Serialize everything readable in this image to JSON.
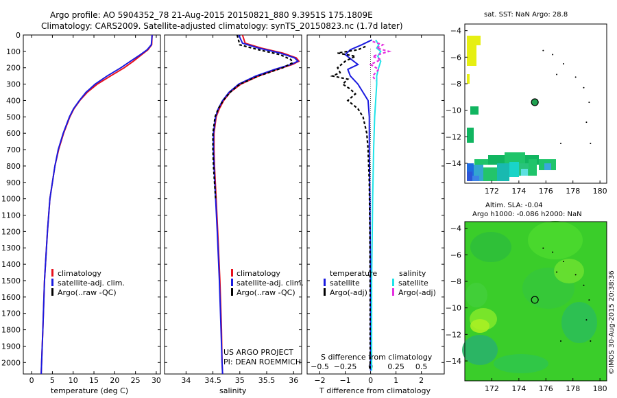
{
  "header": {
    "line1": "Argo profile: AO 5904352_78 21-Aug-2015 20150821_880 9.3951S 175.1809E",
    "line2": "Climatology: CARS2009. Satellite-adjusted climatology: synTS_20150823.nc (1.7d later)"
  },
  "colors": {
    "climatology": "#e8101c",
    "satellite": "#1a1adf",
    "argo": "#000000",
    "sal_satellite": "#1fe3e8",
    "sal_argo": "#e52fe0"
  },
  "credits": {
    "project": "US ARGO PROJECT",
    "pi": "PI: DEAN ROEMMICH",
    "stamp": "©IMOS 30-Aug-2015 20:38:36"
  },
  "chart_data": [
    {
      "type": "line",
      "xlabel": "temperature (deg C)",
      "ylabel": "",
      "xlim": [
        -2,
        31
      ],
      "ylim": [
        2070,
        0
      ],
      "xticks": [
        0,
        5,
        10,
        15,
        20,
        25,
        30
      ],
      "yticks": [
        0,
        100,
        200,
        300,
        400,
        500,
        600,
        700,
        800,
        900,
        1000,
        1100,
        1200,
        1300,
        1400,
        1500,
        1600,
        1700,
        1800,
        1900,
        2000
      ],
      "legend": [
        "climatology",
        "satellite-adj. clim.",
        "Argo(..raw -QC)"
      ],
      "series": [
        {
          "name": "climatology",
          "color": "#e8101c",
          "depth": [
            0,
            60,
            90,
            120,
            160,
            200,
            250,
            300,
            350,
            400,
            450,
            500,
            600,
            700,
            800,
            1000,
            1200,
            1500,
            1800,
            2000,
            2070
          ],
          "values": [
            29.0,
            28.9,
            28.0,
            26.5,
            24.5,
            22.3,
            19.0,
            15.8,
            13.4,
            11.6,
            10.2,
            9.2,
            7.7,
            6.5,
            5.6,
            4.4,
            3.8,
            3.1,
            2.7,
            2.4,
            2.3
          ]
        },
        {
          "name": "satellite-adj. clim.",
          "color": "#1a1adf",
          "depth": [
            0,
            60,
            90,
            120,
            160,
            200,
            250,
            300,
            350,
            400,
            450,
            500,
            600,
            700,
            800,
            1000,
            1200,
            1500,
            1800,
            2000,
            2070
          ],
          "values": [
            29.0,
            28.8,
            27.8,
            26.2,
            23.8,
            21.5,
            18.2,
            15.3,
            13.1,
            11.5,
            10.1,
            9.1,
            7.6,
            6.4,
            5.6,
            4.4,
            3.8,
            3.1,
            2.7,
            2.4,
            2.3
          ]
        }
      ]
    },
    {
      "type": "line",
      "xlabel": "salinity",
      "ylabel": "",
      "xlim": [
        33.6,
        36.15
      ],
      "ylim": [
        2070,
        0
      ],
      "xticks": [
        34,
        34.5,
        35,
        35.5,
        36
      ],
      "legend": [
        "climatology",
        "satellite-adj. clim.",
        "Argo(..raw -QC)"
      ],
      "series": [
        {
          "name": "climatology",
          "color": "#e8101c",
          "depth": [
            0,
            50,
            80,
            110,
            140,
            160,
            180,
            210,
            250,
            300,
            350,
            400,
            450,
            500,
            600,
            700,
            800,
            1000,
            1200,
            1500,
            1800,
            2000,
            2070
          ],
          "values": [
            35.05,
            35.1,
            35.4,
            35.8,
            36.05,
            36.1,
            35.98,
            35.7,
            35.35,
            35.02,
            34.82,
            34.7,
            34.62,
            34.56,
            34.52,
            34.52,
            34.53,
            34.56,
            34.59,
            34.63,
            34.66,
            34.67,
            34.68
          ]
        },
        {
          "name": "satellite-adj. clim.",
          "color": "#1a1adf",
          "depth": [
            0,
            50,
            80,
            110,
            140,
            160,
            180,
            210,
            250,
            300,
            350,
            400,
            450,
            500,
            600,
            700,
            800,
            1000,
            1200,
            1500,
            1800,
            2000,
            2070
          ],
          "values": [
            34.98,
            35.05,
            35.35,
            35.75,
            36.02,
            36.08,
            35.95,
            35.65,
            35.3,
            34.98,
            34.8,
            34.68,
            34.6,
            34.55,
            34.51,
            34.51,
            34.52,
            34.55,
            34.58,
            34.62,
            34.65,
            34.67,
            34.68
          ]
        },
        {
          "name": "Argo(..raw -QC)",
          "color": "#000000",
          "dashed": true,
          "depth": [
            0,
            60,
            90,
            120,
            150,
            170,
            200,
            250,
            300,
            350,
            400,
            450,
            500,
            600,
            700,
            800,
            900,
            1000
          ],
          "values": [
            34.95,
            35.0,
            35.35,
            35.75,
            35.95,
            35.98,
            35.8,
            35.35,
            35.0,
            34.82,
            34.69,
            34.6,
            34.54,
            34.5,
            34.5,
            34.51,
            34.53,
            34.55
          ]
        }
      ]
    },
    {
      "type": "line",
      "xlabel": "T difference from climatology",
      "x2label": "S difference from climatology",
      "xlim": [
        -2.5,
        2.9
      ],
      "x2lim": [
        -0.625,
        0.725
      ],
      "ylim": [
        2070,
        0
      ],
      "xticks": [
        -2,
        -1,
        0,
        1,
        2
      ],
      "x2ticks": [
        -0.5,
        -0.25,
        0,
        0.25,
        0.5
      ],
      "legend_titles": [
        "temperature",
        "salinity"
      ],
      "legend": [
        "satellite",
        "Argo(-adj)",
        "satellite",
        "Argo(-adj)"
      ],
      "series": [
        {
          "name": "satellite",
          "group": "temperature",
          "color": "#1a1adf",
          "depth": [
            30,
            60,
            90,
            120,
            150,
            180,
            210,
            250,
            300,
            350,
            400,
            500,
            700,
            1000,
            1500,
            2050
          ],
          "values": [
            0.05,
            -0.35,
            -0.8,
            -1.0,
            -0.75,
            -0.5,
            -0.9,
            -0.8,
            -0.5,
            -0.3,
            -0.1,
            -0.05,
            -0.05,
            -0.03,
            0.0,
            0.0
          ]
        },
        {
          "name": "Argo(-adj)",
          "group": "temperature",
          "color": "#000000",
          "dashed": true,
          "depth": [
            70,
            90,
            110,
            130,
            160,
            200,
            230,
            250,
            270,
            300,
            330,
            360,
            400,
            450,
            500,
            600,
            700,
            900,
            1200,
            1600,
            2050
          ],
          "values": [
            -0.2,
            -0.5,
            -1.3,
            -0.6,
            -1.0,
            -1.3,
            -1.2,
            -1.5,
            -0.9,
            -1.1,
            -0.8,
            -0.6,
            -0.9,
            -0.5,
            -0.3,
            -0.15,
            -0.1,
            -0.05,
            -0.03,
            -0.02,
            -0.02
          ]
        },
        {
          "name": "satellite",
          "group": "salinity",
          "color": "#1fe3e8",
          "depth": [
            30,
            60,
            80,
            100,
            130,
            160,
            200,
            250,
            300,
            400,
            500,
            700,
            1000,
            1500,
            2050
          ],
          "values": [
            0.05,
            0.08,
            0.06,
            0.1,
            0.07,
            0.1,
            0.08,
            0.06,
            0.06,
            0.05,
            0.04,
            0.03,
            0.02,
            0.01,
            0.01
          ]
        },
        {
          "name": "Argo(-adj)",
          "group": "salinity",
          "color": "#e52fe0",
          "dashed": true,
          "depth": [
            40,
            60,
            80,
            100,
            130,
            150,
            180,
            210,
            250,
            280
          ],
          "values": [
            0.02,
            0.12,
            0.06,
            0.18,
            0.02,
            0.1,
            0.0,
            0.08,
            0.02,
            0.05
          ]
        }
      ]
    },
    {
      "type": "heatmap",
      "title": "sat. SST: NaN Argo: 28.8",
      "xlim": [
        170,
        180.5
      ],
      "ylim": [
        -15.5,
        -3.5
      ],
      "xticks": [
        172,
        174,
        176,
        178,
        180
      ],
      "yticks": [
        -4,
        -6,
        -8,
        -10,
        -12,
        -14
      ],
      "marker": {
        "lon": 175.1809,
        "lat": -9.3951
      }
    },
    {
      "type": "heatmap",
      "title": "Altim. SLA: -0.04",
      "subtitle": "Argo h1000: -0.086 h2000: NaN",
      "xlim": [
        170,
        180.5
      ],
      "ylim": [
        -15.5,
        -3.5
      ],
      "xticks": [
        172,
        174,
        176,
        178,
        180
      ],
      "yticks": [
        -4,
        -6,
        -8,
        -10,
        -12,
        -14
      ],
      "marker": {
        "lon": 175.1809,
        "lat": -9.3951
      }
    }
  ]
}
